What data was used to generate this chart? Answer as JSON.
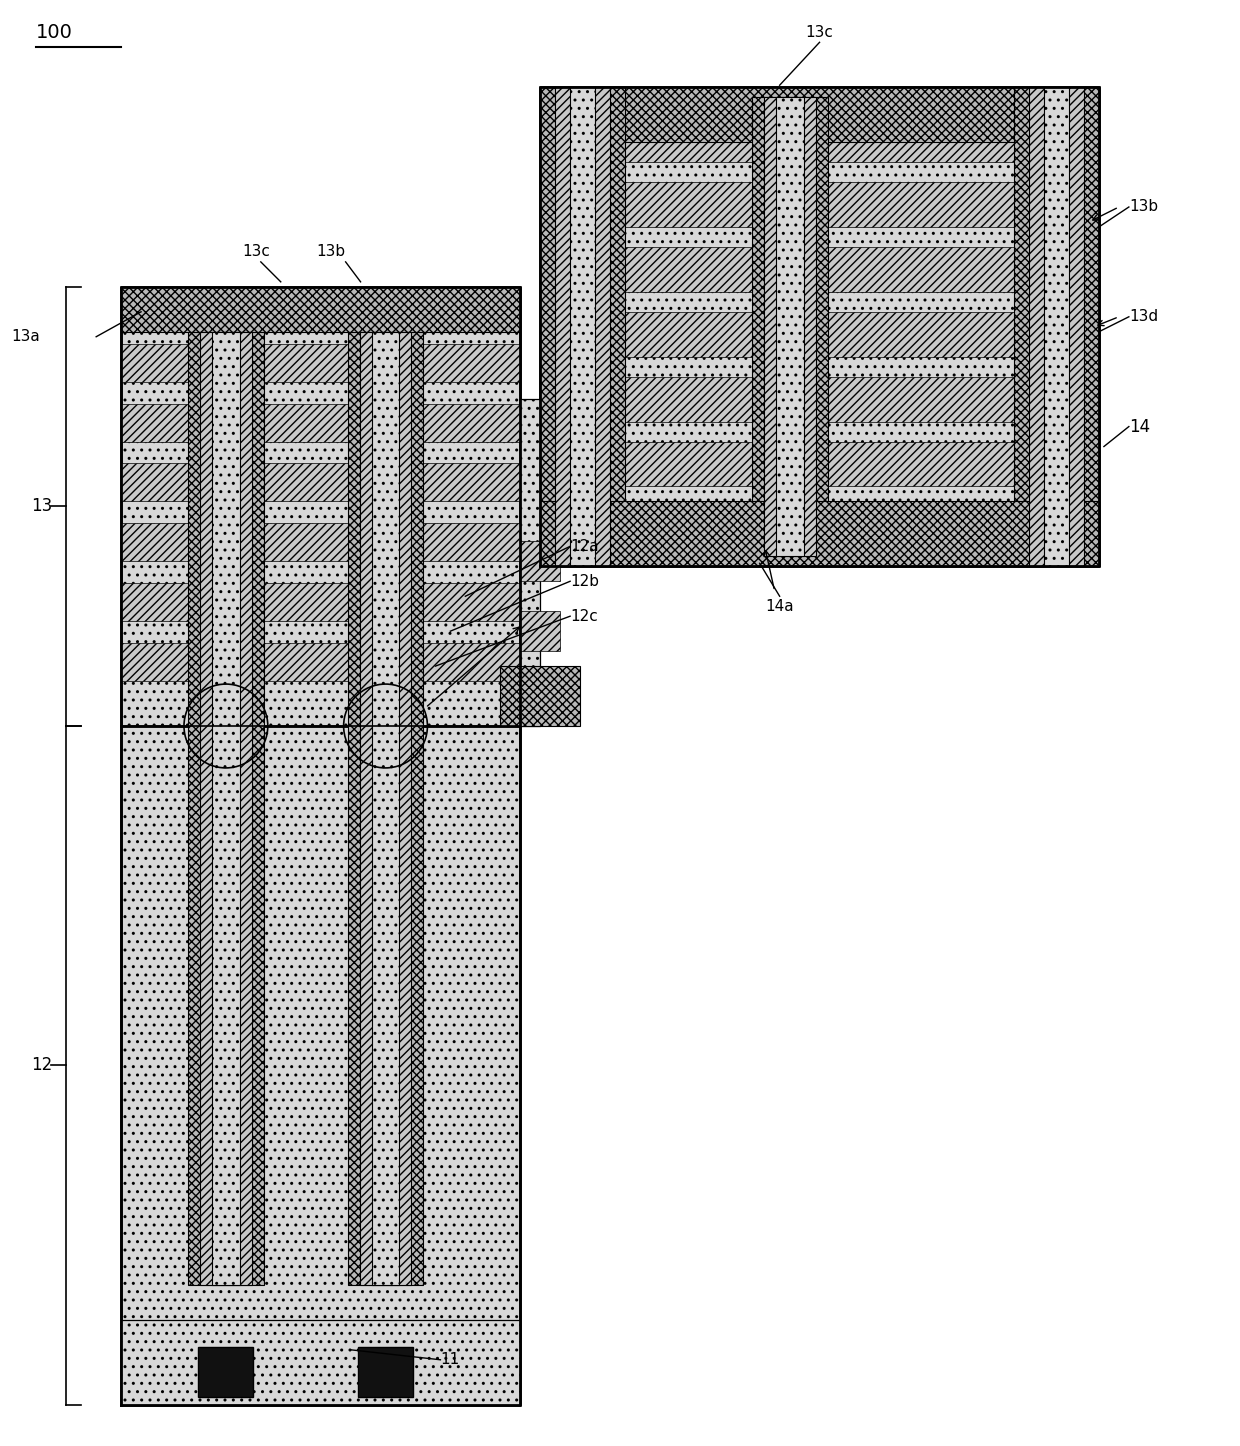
{
  "fig_width": 12.4,
  "fig_height": 14.46,
  "bg_color": "#ffffff",
  "label_100": "100",
  "label_11": "11",
  "label_12": "12",
  "label_12a": "12a",
  "label_12b": "12b",
  "label_12c": "12c",
  "label_13": "13",
  "label_13a": "13a",
  "label_13b": "13b",
  "label_13c": "13c",
  "label_13d": "13d",
  "label_14": "14",
  "label_14a": "14a",
  "color_dots_bg": "#d8d8d8",
  "color_diag": "#c8c8c8",
  "color_cross": "#b8b8b8",
  "color_dark": "#111111",
  "color_edge": "#000000",
  "color_white": "#ffffff"
}
